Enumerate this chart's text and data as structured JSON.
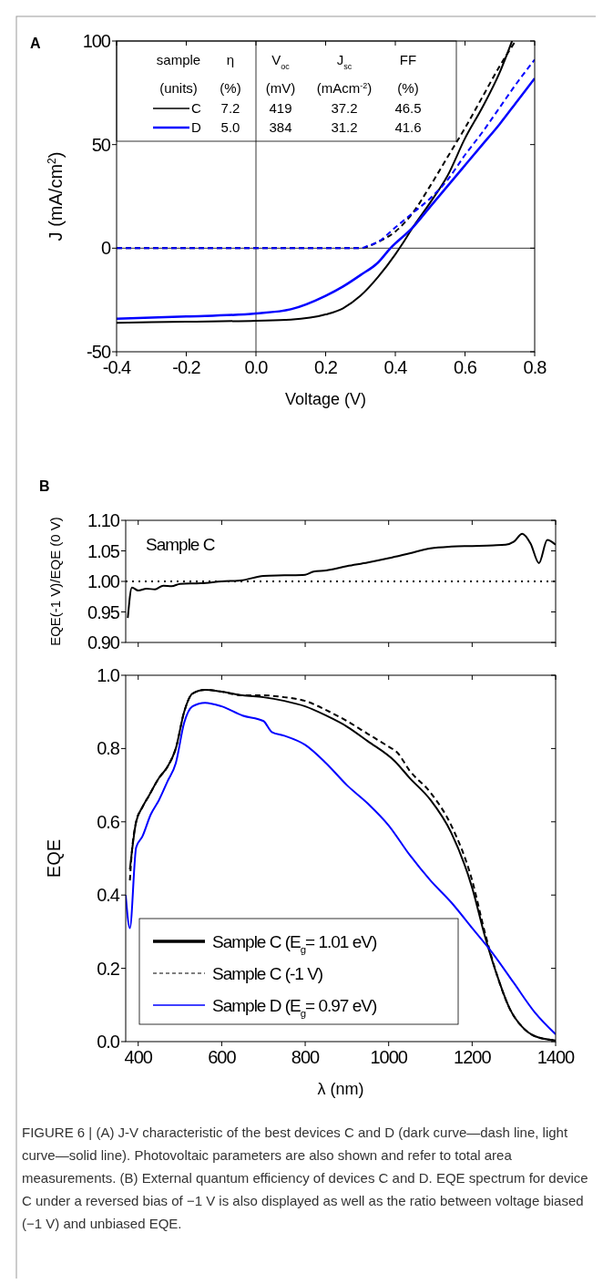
{
  "chart_data": [
    {
      "type": "line",
      "title": "A",
      "xlabel": "Voltage (V)",
      "ylabel": "J (mA/cm$^{2}$)",
      "xlim": [
        -0.4,
        0.8
      ],
      "ylim": [
        -50,
        100
      ],
      "xticks": [
        -0.4,
        -0.2,
        {
          "value": 0,
          "label": "0.0"
        },
        0.2,
        0.4,
        0.6,
        0.8
      ],
      "yticks": [
        -50,
        0,
        50,
        100
      ],
      "legend": "top left",
      "ref_lines": [
        {
          "axis": "x",
          "value": 0,
          "color": "#000000"
        },
        {
          "axis": "y",
          "value": 0,
          "color": "#000000"
        }
      ],
      "annotations": [
        "sample",
        "η",
        "V$_{oc}$",
        "J$_{sc}$",
        "FF",
        "(units)",
        "(%)",
        "(mV)",
        "(mAcm$^{-2}$)",
        "(%)",
        "7.2",
        "419",
        "37.2",
        "46.5",
        "5.0",
        "384",
        "31.2",
        "41.6"
      ],
      "series": [
        {
          "name": "C",
          "color": "#000000",
          "line_style": "solid",
          "x": [
            -0.4,
            -0.2,
            0,
            0.1,
            0.2,
            0.25,
            0.3,
            0.35,
            0.4,
            0.42,
            0.45,
            0.5,
            0.55,
            0.6,
            0.65,
            0.7,
            0.735
          ],
          "values": [
            -36,
            -35.5,
            -35,
            -34.5,
            -32,
            -29,
            -23,
            -14,
            -3,
            2,
            10,
            22,
            35,
            53,
            68,
            85,
            100
          ]
        },
        {
          "name": "D",
          "color": "#0000ff",
          "line_style": "solid",
          "x": [
            -0.4,
            -0.2,
            0,
            0.1,
            0.2,
            0.25,
            0.3,
            0.35,
            0.386,
            0.45,
            0.5,
            0.55,
            0.6,
            0.65,
            0.7,
            0.75,
            0.8
          ],
          "values": [
            -34,
            -33,
            -31.5,
            -29.5,
            -23,
            -18.5,
            -13,
            -7,
            0,
            10,
            20,
            30,
            40,
            50,
            60,
            71,
            82
          ]
        },
        {
          "color": "#000000",
          "line_style": "dashed",
          "x": [
            -0.4,
            0,
            0.3,
            0.35,
            0.4,
            0.45,
            0.5,
            0.55,
            0.6,
            0.65,
            0.7,
            0.745
          ],
          "values": [
            0,
            0,
            0,
            3,
            8,
            17,
            30,
            44,
            58,
            73,
            88,
            100
          ]
        },
        {
          "color": "#0000ff",
          "line_style": "dashed",
          "x": [
            -0.4,
            0,
            0.3,
            0.32,
            0.35,
            0.4,
            0.45,
            0.5,
            0.55,
            0.6,
            0.65,
            0.7,
            0.75,
            0.8
          ],
          "values": [
            0,
            0,
            0,
            1,
            3,
            10,
            17,
            24,
            33,
            45,
            56,
            68,
            80,
            91
          ]
        }
      ]
    },
    {
      "type": "line",
      "title": "B",
      "ylabel": "EQE(-1 V)/EQE (0 V)",
      "xlim": [
        370,
        1400
      ],
      "ylim": [
        0.9,
        1.1
      ],
      "tick_labels": "y",
      "xticks": [
        400,
        600,
        800,
        1000,
        1200,
        1400
      ],
      "yticks": [
        {
          "value": 0.9,
          "label": "0.90"
        },
        0.95,
        {
          "value": 1,
          "label": "1.00"
        },
        1.05,
        {
          "value": 1.1,
          "label": "1.10"
        }
      ],
      "ref_lines": [
        {
          "axis": "y",
          "value": 1,
          "color": "#000000",
          "line_style": "dotted"
        }
      ],
      "annotations": [
        "Sample C"
      ],
      "series": [
        {
          "color": "#000000",
          "line_style": "solid",
          "x": [
            375,
            385,
            400,
            420,
            440,
            460,
            480,
            500,
            550,
            600,
            650,
            700,
            750,
            800,
            820,
            850,
            900,
            950,
            1000,
            1050,
            1100,
            1150,
            1200,
            1250,
            1280,
            1300,
            1320,
            1340,
            1360,
            1380,
            1400
          ],
          "values": [
            0.94,
            0.99,
            0.985,
            0.988,
            0.987,
            0.993,
            0.992,
            0.996,
            0.997,
            1.0,
            1.002,
            1.009,
            1.01,
            1.011,
            1.016,
            1.018,
            1.025,
            1.031,
            1.038,
            1.046,
            1.054,
            1.057,
            1.058,
            1.059,
            1.06,
            1.065,
            1.078,
            1.062,
            1.03,
            1.068,
            1.06
          ]
        }
      ]
    },
    {
      "type": "line",
      "xlabel": "λ (nm)",
      "ylabel": "EQE",
      "xlim": [
        370,
        1400
      ],
      "ylim": [
        0,
        1
      ],
      "legend": "bottom left",
      "xticks": [
        400,
        600,
        800,
        1000,
        1200,
        1400
      ],
      "yticks": [
        {
          "value": 0,
          "label": "0.0"
        },
        0.2,
        0.4,
        0.6,
        0.8,
        {
          "value": 1,
          "label": "1.0"
        }
      ],
      "annotations": [
        "FIGURE 6 | (A) J-V characteristic of the best devices C and D (dark curve—dash line, light curve—solid line). Photovoltaic parameters are also shown and refer to total area measurements. (B) External quantum efficiency of devices C and D. EQE spectrum for device C under a reversed bias of −1 V is also displayed as well as the ratio between voltage biased (−1 V) and unbiased EQE."
      ],
      "series": [
        {
          "name": "Sample C (E$_{g}$= 1.01 eV)",
          "color": "#000000",
          "line_style": "solid",
          "x": [
            380,
            385,
            395,
            410,
            425,
            450,
            470,
            490,
            510,
            530,
            560,
            600,
            650,
            700,
            750,
            800,
            850,
            900,
            950,
            1015,
            1050,
            1100,
            1150,
            1200,
            1230,
            1260,
            1290,
            1320,
            1350,
            1400
          ],
          "values": [
            0.47,
            0.52,
            0.6,
            0.64,
            0.67,
            0.72,
            0.75,
            0.8,
            0.9,
            0.95,
            0.96,
            0.955,
            0.945,
            0.94,
            0.93,
            0.915,
            0.89,
            0.86,
            0.82,
            0.765,
            0.72,
            0.66,
            0.57,
            0.42,
            0.29,
            0.18,
            0.09,
            0.04,
            0.015,
            0.003
          ]
        },
        {
          "name": "Sample C (-1 V)",
          "color": "#000000",
          "line_style": "dashed",
          "x": [
            380,
            385,
            395,
            410,
            425,
            450,
            470,
            490,
            510,
            530,
            560,
            600,
            650,
            700,
            750,
            800,
            850,
            900,
            950,
            1000,
            1020,
            1050,
            1100,
            1150,
            1200,
            1230,
            1260,
            1290,
            1320,
            1350,
            1400
          ],
          "values": [
            0.44,
            0.52,
            0.6,
            0.64,
            0.67,
            0.72,
            0.75,
            0.8,
            0.9,
            0.95,
            0.96,
            0.955,
            0.945,
            0.945,
            0.94,
            0.93,
            0.905,
            0.875,
            0.84,
            0.805,
            0.79,
            0.74,
            0.68,
            0.59,
            0.44,
            0.3,
            0.18,
            0.09,
            0.04,
            0.015,
            0.003
          ]
        },
        {
          "name": "Sample D (E$_{g}$= 0.97 eV)",
          "color": "#0000ff",
          "line_style": "solid",
          "x": [
            370,
            380,
            395,
            410,
            430,
            450,
            470,
            490,
            510,
            530,
            560,
            600,
            650,
            700,
            720,
            750,
            800,
            850,
            900,
            950,
            1000,
            1050,
            1100,
            1150,
            1200,
            1250,
            1300,
            1350,
            1400
          ],
          "values": [
            0.4,
            0.31,
            0.53,
            0.56,
            0.62,
            0.66,
            0.71,
            0.76,
            0.87,
            0.915,
            0.925,
            0.915,
            0.89,
            0.875,
            0.845,
            0.835,
            0.81,
            0.76,
            0.7,
            0.65,
            0.59,
            0.51,
            0.44,
            0.38,
            0.31,
            0.24,
            0.16,
            0.08,
            0.02
          ]
        }
      ]
    }
  ]
}
